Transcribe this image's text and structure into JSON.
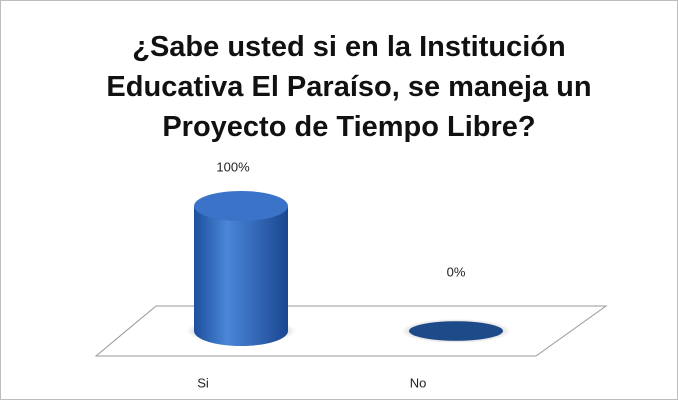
{
  "chart_data": {
    "type": "bar3d",
    "title": "¿Sabe usted si en la Institución Educativa El Paraíso, se maneja un Proyecto de Tiempo Libre?",
    "categories": [
      "Si",
      "No"
    ],
    "values": [
      100,
      0
    ],
    "value_labels": [
      "100%",
      "0%"
    ],
    "color": "#2e64b8"
  }
}
